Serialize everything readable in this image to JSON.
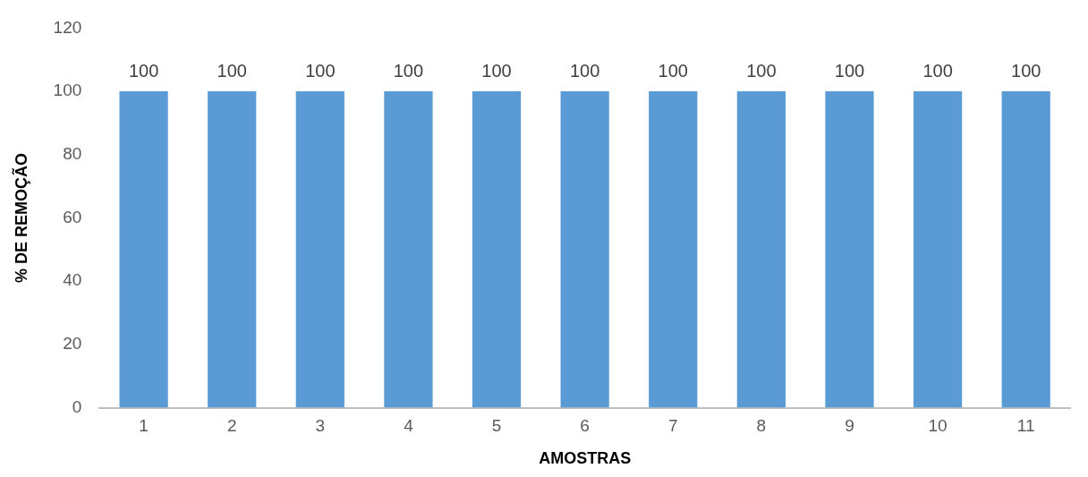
{
  "chart_data": {
    "type": "bar",
    "xlabel": "AMOSTRAS",
    "ylabel": "% DE REMOÇÃO",
    "categories": [
      "1",
      "2",
      "3",
      "4",
      "5",
      "6",
      "7",
      "8",
      "9",
      "10",
      "11"
    ],
    "values": [
      100,
      100,
      100,
      100,
      100,
      100,
      100,
      100,
      100,
      100,
      100
    ],
    "color": "#5b9bd5",
    "ylim": [
      0,
      120
    ],
    "yticks": [
      0,
      20,
      40,
      60,
      80,
      100,
      120
    ],
    "grid": false,
    "data_labels": true,
    "legend": false
  }
}
